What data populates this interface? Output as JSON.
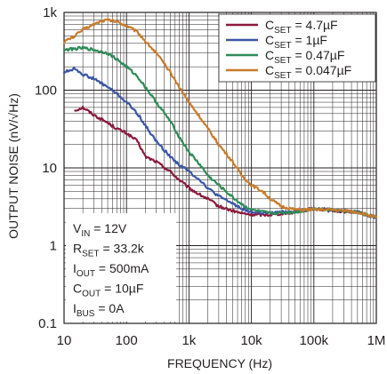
{
  "chart_data": {
    "type": "line",
    "xlabel": "FREQUENCY (Hz)",
    "ylabel": "OUTPUT NOISE (nV/√Hz)",
    "xscale": "log",
    "yscale": "log",
    "xlim": [
      10,
      1000000
    ],
    "ylim": [
      0.1,
      1000
    ],
    "grid": true,
    "x_ticks": [
      "10",
      "100",
      "1k",
      "10k",
      "100k",
      "1M"
    ],
    "y_ticks": [
      "0.1",
      "1",
      "10",
      "100",
      "1k"
    ],
    "legend_position": "top-right",
    "series": [
      {
        "name": "CSET = 4.7µF",
        "legend": {
          "base": "C",
          "sub": "SET",
          "rest": " = 4.7µF"
        },
        "color": "#8b1a3c",
        "x": [
          15,
          20,
          30,
          50,
          70,
          100,
          150,
          200,
          300,
          500,
          700,
          1000,
          1500,
          2000,
          3000,
          5000,
          7000,
          10000,
          20000,
          50000,
          100000,
          200000,
          500000,
          1000000
        ],
        "y": [
          55,
          60,
          48,
          38,
          32,
          28,
          22,
          14,
          12,
          9,
          7,
          5.5,
          4.5,
          4,
          3.2,
          2.8,
          2.6,
          2.5,
          2.5,
          2.7,
          3,
          2.8,
          2.7,
          2.3
        ]
      },
      {
        "name": "CSET = 1µF",
        "legend": {
          "base": "C",
          "sub": "SET",
          "rest": " = 1µF"
        },
        "color": "#3a56a6",
        "x": [
          10,
          15,
          20,
          30,
          50,
          70,
          100,
          150,
          200,
          300,
          500,
          700,
          1000,
          1500,
          2000,
          3000,
          5000,
          7000,
          10000,
          20000,
          50000,
          100000,
          200000,
          500000,
          1000000
        ],
        "y": [
          170,
          190,
          160,
          140,
          110,
          90,
          70,
          50,
          35,
          22,
          14,
          11,
          9,
          7,
          5.5,
          4.3,
          3.5,
          3,
          2.7,
          2.6,
          2.8,
          3,
          2.9,
          2.7,
          2.3
        ]
      },
      {
        "name": "CSET = 0.47µF",
        "legend": {
          "base": "C",
          "sub": "SET",
          "rest": " = 0.47µF"
        },
        "color": "#2e8b57",
        "x": [
          10,
          15,
          20,
          30,
          50,
          70,
          100,
          150,
          200,
          300,
          500,
          700,
          1000,
          1500,
          2000,
          3000,
          5000,
          7000,
          10000,
          20000,
          50000,
          100000,
          200000,
          500000,
          1000000
        ],
        "y": [
          330,
          340,
          350,
          330,
          300,
          250,
          200,
          150,
          110,
          70,
          40,
          25,
          16,
          11,
          8,
          6,
          4.2,
          3.4,
          2.9,
          2.6,
          2.7,
          3,
          2.9,
          2.7,
          2.3
        ]
      },
      {
        "name": "CSET = 0.047µF",
        "legend": {
          "base": "C",
          "sub": "SET",
          "rest": " = 0.047µF"
        },
        "color": "#c97b2a",
        "x": [
          10,
          15,
          20,
          30,
          40,
          50,
          70,
          100,
          150,
          200,
          300,
          500,
          700,
          1000,
          1500,
          2000,
          3000,
          5000,
          7000,
          10000,
          15000,
          20000,
          30000,
          50000,
          100000,
          200000,
          500000,
          1000000
        ],
        "y": [
          420,
          500,
          600,
          700,
          780,
          800,
          760,
          680,
          560,
          430,
          300,
          170,
          110,
          70,
          45,
          32,
          20,
          12,
          8,
          6,
          5,
          4,
          3.2,
          2.9,
          2.9,
          2.9,
          2.7,
          2.3
        ]
      }
    ],
    "conditions": [
      {
        "base": "V",
        "sub": "IN",
        "rest": " = 12V"
      },
      {
        "base": "R",
        "sub": "SET",
        "rest": " = 33.2k"
      },
      {
        "base": "I",
        "sub": "OUT",
        "rest": " = 500mA"
      },
      {
        "base": "C",
        "sub": "OUT",
        "rest": " = 10µF"
      },
      {
        "base": "I",
        "sub": "BUS",
        "rest": " = 0A"
      }
    ]
  }
}
